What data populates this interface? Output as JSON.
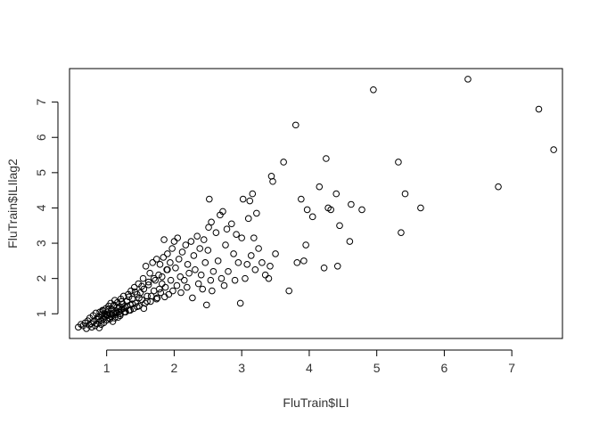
{
  "chart_data": {
    "type": "scatter",
    "title": "",
    "xlabel": "FluTrain$ILI",
    "ylabel": "FluTrain$ILIlag2",
    "xlim": [
      0.45,
      7.75
    ],
    "ylim": [
      0.3,
      7.95
    ],
    "xticks": [
      1,
      2,
      3,
      4,
      5,
      6,
      7
    ],
    "yticks": [
      1,
      2,
      3,
      4,
      5,
      6,
      7
    ],
    "grid": false,
    "legend": "none",
    "marker": "open-circle",
    "colors": {
      "marker": "#000000",
      "axis": "#000000",
      "background": "#ffffff"
    },
    "points": [
      [
        0.58,
        0.62
      ],
      [
        0.62,
        0.7
      ],
      [
        0.65,
        0.66
      ],
      [
        0.68,
        0.74
      ],
      [
        0.7,
        0.58
      ],
      [
        0.72,
        0.8
      ],
      [
        0.74,
        0.68
      ],
      [
        0.75,
        0.88
      ],
      [
        0.77,
        0.72
      ],
      [
        0.78,
        0.62
      ],
      [
        0.8,
        0.95
      ],
      [
        0.81,
        0.78
      ],
      [
        0.83,
        0.66
      ],
      [
        0.84,
        1.02
      ],
      [
        0.85,
        0.85
      ],
      [
        0.86,
        0.72
      ],
      [
        0.88,
        0.92
      ],
      [
        0.89,
        0.6
      ],
      [
        0.9,
        1.05
      ],
      [
        0.91,
        0.8
      ],
      [
        0.92,
        0.7
      ],
      [
        0.93,
        0.98
      ],
      [
        0.94,
        1.1
      ],
      [
        0.95,
        0.86
      ],
      [
        0.96,
        0.75
      ],
      [
        0.97,
        1.0
      ],
      [
        0.98,
        0.92
      ],
      [
        0.99,
        1.15
      ],
      [
        1.0,
        0.82
      ],
      [
        1.01,
        1.05
      ],
      [
        1.02,
        0.95
      ],
      [
        1.03,
        1.22
      ],
      [
        1.04,
        0.88
      ],
      [
        1.05,
        1.0
      ],
      [
        1.06,
        1.3
      ],
      [
        1.07,
        0.92
      ],
      [
        1.08,
        1.12
      ],
      [
        1.09,
        0.78
      ],
      [
        1.1,
        1.02
      ],
      [
        1.11,
        1.25
      ],
      [
        1.12,
        1.38
      ],
      [
        1.13,
        0.98
      ],
      [
        1.14,
        1.08
      ],
      [
        1.15,
        1.18
      ],
      [
        1.16,
        1.32
      ],
      [
        1.17,
        0.9
      ],
      [
        1.18,
        1.05
      ],
      [
        1.19,
        1.2
      ],
      [
        1.2,
        1.0
      ],
      [
        1.21,
        1.42
      ],
      [
        1.22,
        1.12
      ],
      [
        1.24,
        1.28
      ],
      [
        1.25,
        1.5
      ],
      [
        1.26,
        1.05
      ],
      [
        1.28,
        1.18
      ],
      [
        1.3,
        1.35
      ],
      [
        1.32,
        1.55
      ],
      [
        1.33,
        1.1
      ],
      [
        1.35,
        1.25
      ],
      [
        1.36,
        1.65
      ],
      [
        1.38,
        1.42
      ],
      [
        1.4,
        1.15
      ],
      [
        1.41,
        1.75
      ],
      [
        1.43,
        1.3
      ],
      [
        1.45,
        1.55
      ],
      [
        1.47,
        1.85
      ],
      [
        1.48,
        1.22
      ],
      [
        1.5,
        1.6
      ],
      [
        1.52,
        1.4
      ],
      [
        1.54,
        2.0
      ],
      [
        1.55,
        1.7
      ],
      [
        1.57,
        1.3
      ],
      [
        1.58,
        2.35
      ],
      [
        1.6,
        1.5
      ],
      [
        1.62,
        1.82
      ],
      [
        1.64,
        2.15
      ],
      [
        1.65,
        1.35
      ],
      [
        1.68,
        2.45
      ],
      [
        1.7,
        1.65
      ],
      [
        1.72,
        1.95
      ],
      [
        1.74,
        2.55
      ],
      [
        1.75,
        1.45
      ],
      [
        1.77,
        2.1
      ],
      [
        1.79,
        2.4
      ],
      [
        1.8,
        1.6
      ],
      [
        1.82,
        1.85
      ],
      [
        1.84,
        2.6
      ],
      [
        1.85,
        3.1
      ],
      [
        1.87,
        1.75
      ],
      [
        1.89,
        2.25
      ],
      [
        1.9,
        2.7
      ],
      [
        1.92,
        1.55
      ],
      [
        1.94,
        2.45
      ],
      [
        1.95,
        1.95
      ],
      [
        1.97,
        2.85
      ],
      [
        1.98,
        1.65
      ],
      [
        2.0,
        3.05
      ],
      [
        2.02,
        2.3
      ],
      [
        2.04,
        1.8
      ],
      [
        2.05,
        3.15
      ],
      [
        2.07,
        2.55
      ],
      [
        2.09,
        2.05
      ],
      [
        2.1,
        1.6
      ],
      [
        2.12,
        2.75
      ],
      [
        2.15,
        1.95
      ],
      [
        2.17,
        2.95
      ],
      [
        2.19,
        1.75
      ],
      [
        2.2,
        2.4
      ],
      [
        2.22,
        2.15
      ],
      [
        2.25,
        3.05
      ],
      [
        2.27,
        1.45
      ],
      [
        2.29,
        2.65
      ],
      [
        2.31,
        2.25
      ],
      [
        2.34,
        3.2
      ],
      [
        2.36,
        1.85
      ],
      [
        2.38,
        2.85
      ],
      [
        2.4,
        2.1
      ],
      [
        2.42,
        1.7
      ],
      [
        2.44,
        3.1
      ],
      [
        2.46,
        2.45
      ],
      [
        2.48,
        1.25
      ],
      [
        2.5,
        2.8
      ],
      [
        2.51,
        3.45
      ],
      [
        2.52,
        4.25
      ],
      [
        2.54,
        1.95
      ],
      [
        2.55,
        3.6
      ],
      [
        2.56,
        1.65
      ],
      [
        2.58,
        2.2
      ],
      [
        2.62,
        3.3
      ],
      [
        2.65,
        2.5
      ],
      [
        2.68,
        3.8
      ],
      [
        2.7,
        2.0
      ],
      [
        2.72,
        3.9
      ],
      [
        2.74,
        1.8
      ],
      [
        2.76,
        2.95
      ],
      [
        2.78,
        3.4
      ],
      [
        2.8,
        2.2
      ],
      [
        2.85,
        3.55
      ],
      [
        2.88,
        2.7
      ],
      [
        2.9,
        1.95
      ],
      [
        2.92,
        3.25
      ],
      [
        2.95,
        2.45
      ],
      [
        2.98,
        1.3
      ],
      [
        3.0,
        3.15
      ],
      [
        3.02,
        4.25
      ],
      [
        3.05,
        2.0
      ],
      [
        3.08,
        2.4
      ],
      [
        3.1,
        3.7
      ],
      [
        3.12,
        4.2
      ],
      [
        3.14,
        2.65
      ],
      [
        3.16,
        4.4
      ],
      [
        3.18,
        3.15
      ],
      [
        3.2,
        2.25
      ],
      [
        3.22,
        3.85
      ],
      [
        3.25,
        2.85
      ],
      [
        3.3,
        2.45
      ],
      [
        3.35,
        2.1
      ],
      [
        3.4,
        2.0
      ],
      [
        3.42,
        2.35
      ],
      [
        3.44,
        4.9
      ],
      [
        3.46,
        4.75
      ],
      [
        3.5,
        2.7
      ],
      [
        3.62,
        5.3
      ],
      [
        3.7,
        1.65
      ],
      [
        3.8,
        6.35
      ],
      [
        3.82,
        2.45
      ],
      [
        3.88,
        4.25
      ],
      [
        3.92,
        2.5
      ],
      [
        3.95,
        2.95
      ],
      [
        3.97,
        3.95
      ],
      [
        4.05,
        3.75
      ],
      [
        4.15,
        4.6
      ],
      [
        4.22,
        2.3
      ],
      [
        4.25,
        5.4
      ],
      [
        4.28,
        4.0
      ],
      [
        4.32,
        3.95
      ],
      [
        4.4,
        4.4
      ],
      [
        4.42,
        2.35
      ],
      [
        4.45,
        3.5
      ],
      [
        4.6,
        3.05
      ],
      [
        4.62,
        4.1
      ],
      [
        4.78,
        3.95
      ],
      [
        4.95,
        7.35
      ],
      [
        5.32,
        5.3
      ],
      [
        5.36,
        3.3
      ],
      [
        5.42,
        4.4
      ],
      [
        5.65,
        4.0
      ],
      [
        6.35,
        7.65
      ],
      [
        6.8,
        4.6
      ],
      [
        7.4,
        6.8
      ],
      [
        7.62,
        5.65
      ],
      [
        0.88,
        0.85
      ],
      [
        0.95,
        1.08
      ],
      [
        1.0,
        0.95
      ],
      [
        1.02,
        1.12
      ],
      [
        1.05,
        0.85
      ],
      [
        1.08,
        0.98
      ],
      [
        1.1,
        1.22
      ],
      [
        1.12,
        0.88
      ],
      [
        1.15,
        1.02
      ],
      [
        1.18,
        1.15
      ],
      [
        1.2,
        0.95
      ],
      [
        1.22,
        1.35
      ],
      [
        1.25,
        1.15
      ],
      [
        1.28,
        1.05
      ],
      [
        1.3,
        1.22
      ],
      [
        1.33,
        1.48
      ],
      [
        1.35,
        1.1
      ],
      [
        1.38,
        1.28
      ],
      [
        1.42,
        1.62
      ],
      [
        1.45,
        1.2
      ],
      [
        1.48,
        1.45
      ],
      [
        1.52,
        1.78
      ],
      [
        1.55,
        1.15
      ],
      [
        1.6,
        1.35
      ],
      [
        1.62,
        1.9
      ],
      [
        1.66,
        1.5
      ],
      [
        1.7,
        2.0
      ],
      [
        1.74,
        1.42
      ],
      [
        1.78,
        1.7
      ],
      [
        1.82,
        2.05
      ],
      [
        1.86,
        1.48
      ],
      [
        1.9,
        2.25
      ]
    ]
  }
}
